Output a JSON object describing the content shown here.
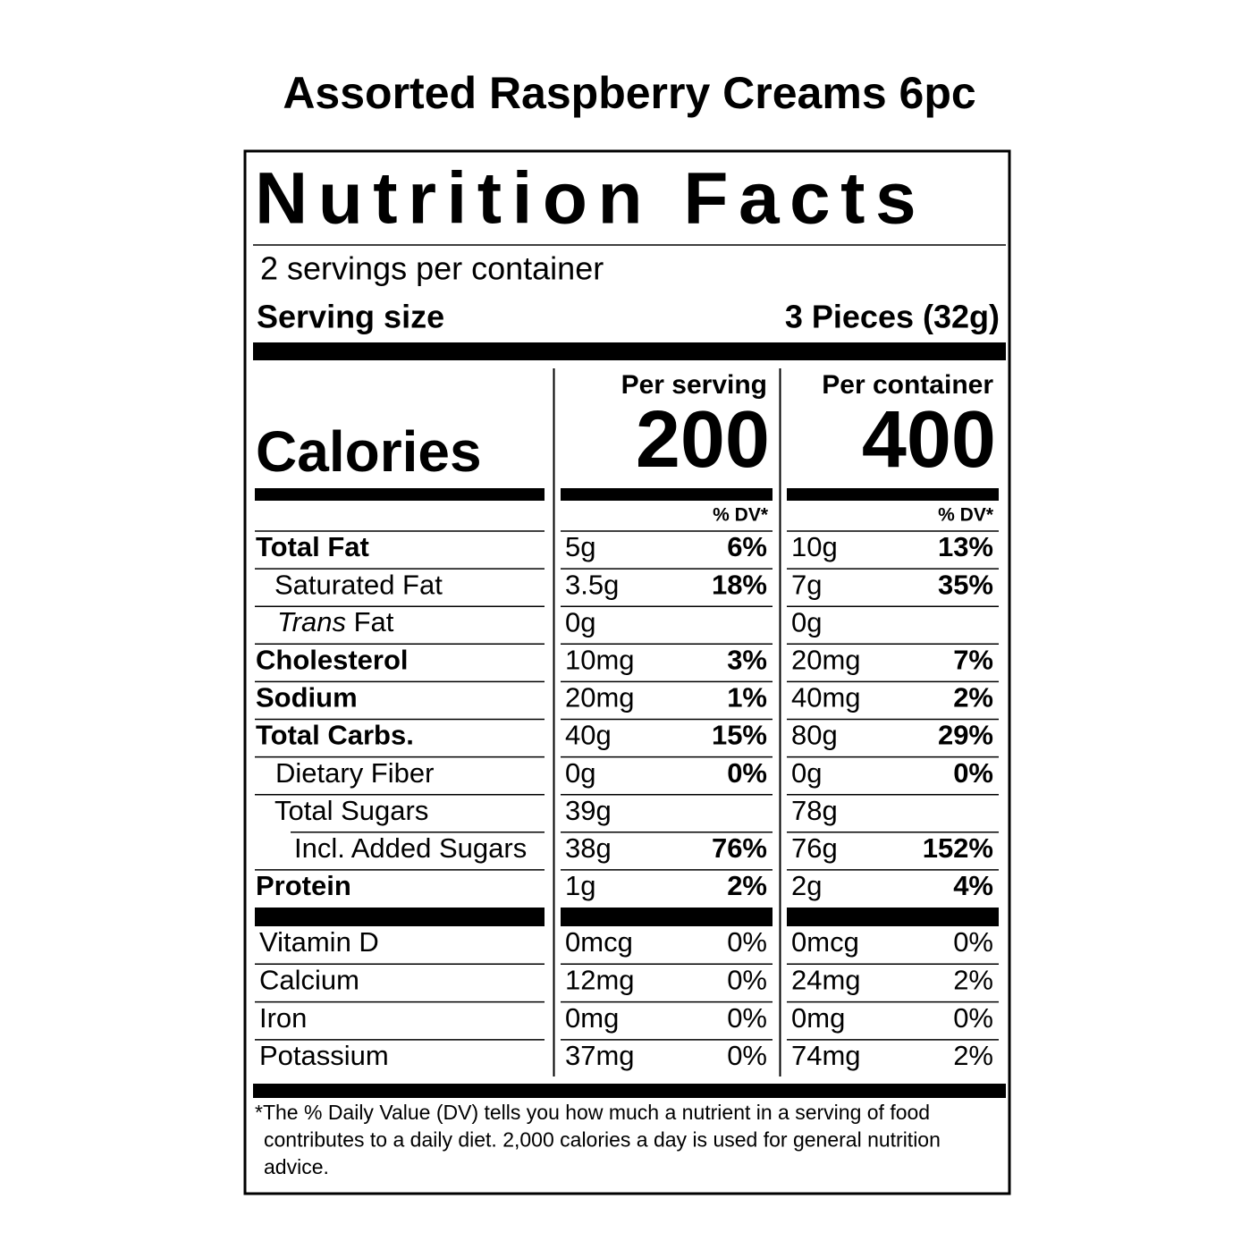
{
  "title": "Assorted Raspberry Creams 6pc",
  "label": {
    "heading": "Nutrition Facts",
    "servings_per_container": "2 servings per container",
    "serving_size_label": "Serving size",
    "serving_size_value": "3 Pieces (32g)",
    "calories_label": "Calories",
    "per_serving_header": "Per serving",
    "per_serving_calories": "200",
    "per_container_header": "Per container",
    "per_container_calories": "400",
    "serving_dv_header": "% DV*",
    "container_dv_header": "% DV*",
    "nutrients": [
      {
        "name": "Total Fat",
        "serving_amount": "5g",
        "serving_dv": "6%",
        "container_amount": "10g",
        "container_dv": "13%"
      },
      {
        "name": "Saturated Fat",
        "serving_amount": "3.5g",
        "serving_dv": "18%",
        "container_amount": "7g",
        "container_dv": "35%"
      },
      {
        "name_italic": "Trans",
        "name": " Fat",
        "serving_amount": "0g",
        "container_amount": "0g"
      },
      {
        "name": "Cholesterol",
        "serving_amount": "10mg",
        "serving_dv": "3%",
        "container_amount": "20mg",
        "container_dv": "7%"
      },
      {
        "name": "Sodium",
        "serving_amount": "20mg",
        "serving_dv": "1%",
        "container_amount": "40mg",
        "container_dv": "2%"
      },
      {
        "name": "Total Carbs.",
        "serving_amount": "40g",
        "serving_dv": "15%",
        "container_amount": "80g",
        "container_dv": "29%"
      },
      {
        "name": "Dietary Fiber",
        "serving_amount": "0g",
        "serving_dv": "0%",
        "container_amount": "0g",
        "container_dv": "0%"
      },
      {
        "name": "Total Sugars",
        "serving_amount": "39g",
        "container_amount": "78g"
      },
      {
        "name": "Incl. Added Sugars",
        "serving_amount": "38g",
        "serving_dv": "76%",
        "container_amount": "76g",
        "container_dv": "152%"
      },
      {
        "name": "Protein",
        "serving_amount": "1g",
        "serving_dv": "2%",
        "container_amount": "2g",
        "container_dv": "4%"
      }
    ],
    "minerals": [
      {
        "name": "Vitamin D",
        "serving_amount": "0mcg",
        "serving_dv": "0%",
        "container_amount": "0mcg",
        "container_dv": "0%"
      },
      {
        "name": "Calcium",
        "serving_amount": "12mg",
        "serving_dv": "0%",
        "container_amount": "24mg",
        "container_dv": "2%"
      },
      {
        "name": "Iron",
        "serving_amount": "0mg",
        "serving_dv": "0%",
        "container_amount": "0mg",
        "container_dv": "0%"
      },
      {
        "name": "Potassium",
        "serving_amount": "37mg",
        "serving_dv": "0%",
        "container_amount": "74mg",
        "container_dv": "2%"
      }
    ],
    "footnote": [
      "*The % Daily Value (DV) tells you how much a nutrient in a serving of food",
      "contributes to a daily diet. 2,000 calories a day is used for general nutrition",
      "advice."
    ]
  }
}
